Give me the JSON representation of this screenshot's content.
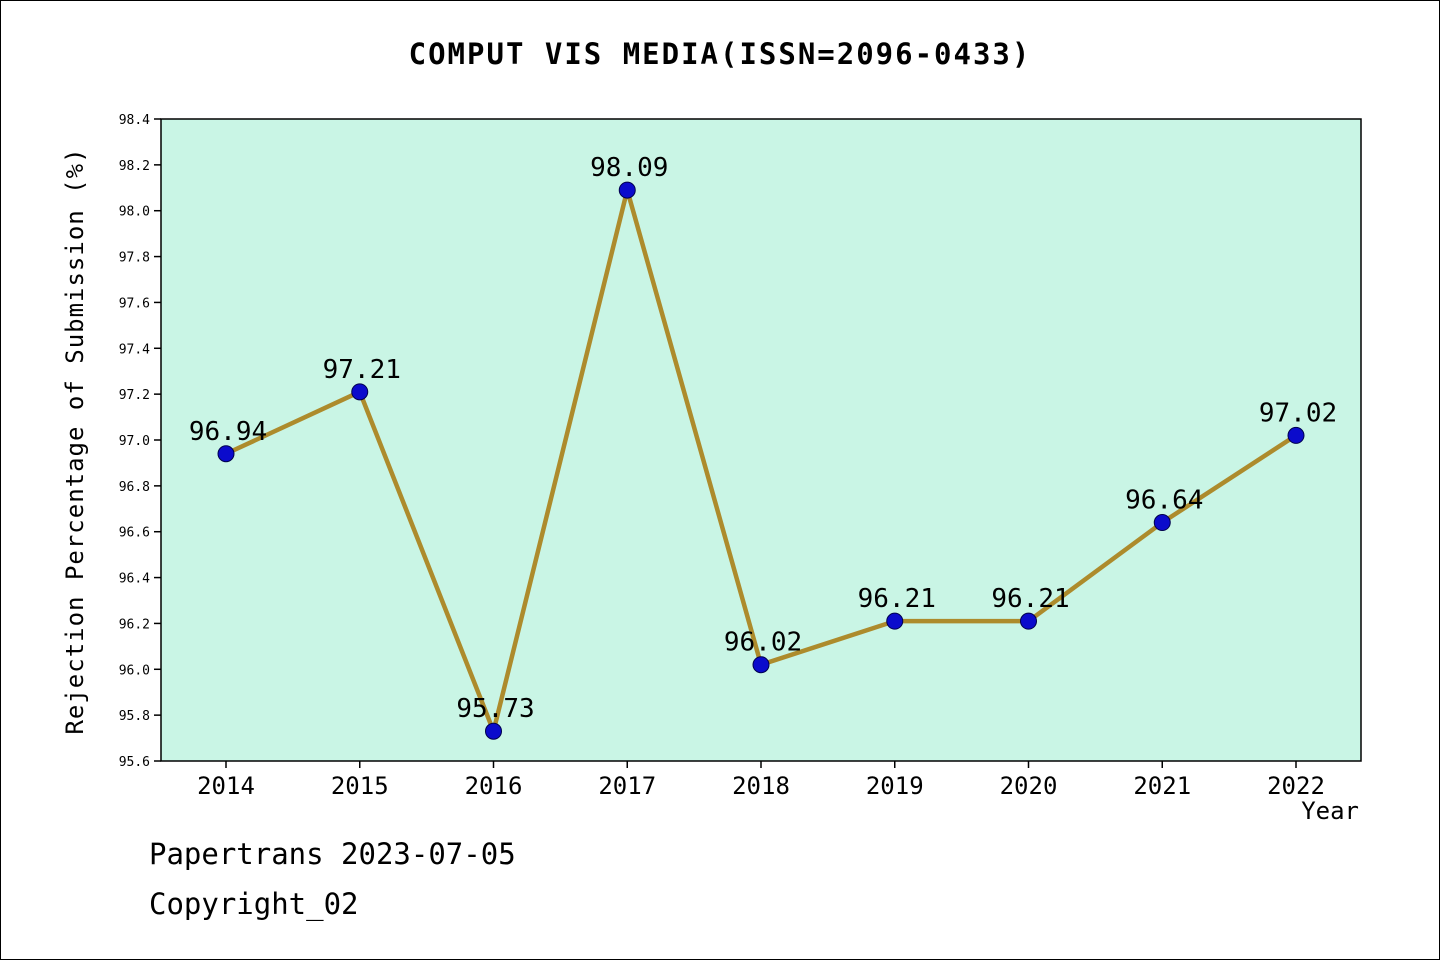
{
  "title": "COMPUT VIS MEDIA(ISSN=2096-0433)",
  "footer": {
    "line1": "Papertrans 2023-07-05",
    "line2": "Copyright_02"
  },
  "chart_data": {
    "type": "line",
    "categories": [
      "2014",
      "2015",
      "2016",
      "2017",
      "2018",
      "2019",
      "2020",
      "2021",
      "2022"
    ],
    "values": [
      96.94,
      97.21,
      95.73,
      98.09,
      96.02,
      96.21,
      96.21,
      96.64,
      97.02
    ],
    "point_labels": [
      "96.94",
      "97.21",
      "95.73",
      "98.09",
      "96.02",
      "96.21",
      "96.21",
      "96.64",
      "97.02"
    ],
    "title": "COMPUT VIS MEDIA(ISSN=2096-0433)",
    "xlabel": "Year",
    "ylabel": "Rejection Percentage of Submission (%)",
    "ylim": [
      95.6,
      98.4
    ],
    "ytick_step": 0.2,
    "grid": false,
    "legend": "none",
    "colors": {
      "plot_bg": "#c9f5e5",
      "line": "#ad8b2c",
      "marker_fill": "#0b0bcc",
      "marker_edge": "#00004d",
      "axis": "#000000",
      "text": "#000000"
    }
  }
}
